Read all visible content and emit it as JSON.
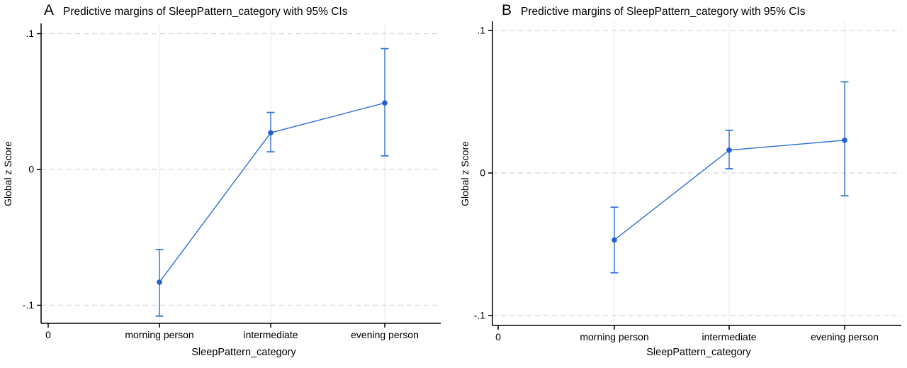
{
  "figure": {
    "background": "#ffffff"
  },
  "chart_data": [
    {
      "type": "line",
      "panel_label": "A",
      "title": "Predictive margins of SleepPattern_category with 95% CIs",
      "xlabel": "SleepPattern_category",
      "ylabel": "Global z Score",
      "legend": "none",
      "grid": {
        "horizontal_dashed": true,
        "vertical_faint": true
      },
      "x_axis": {
        "origin_label": "0",
        "categories": [
          "morning person",
          "intermediate",
          "evening person"
        ]
      },
      "y_axis": {
        "ylim": [
          -0.113,
          0.108
        ],
        "ticks": [
          {
            "label": ".1",
            "value": 0.1
          },
          {
            "label": "0",
            "value": 0.0
          },
          {
            "label": "-.1",
            "value": -0.1
          }
        ]
      },
      "series": [
        {
          "name": "Predictive margins with 95% CIs",
          "values": [
            -0.083,
            0.027,
            0.049
          ],
          "ci_low": [
            -0.108,
            0.013,
            0.01
          ],
          "ci_high": [
            -0.059,
            0.042,
            0.089
          ]
        }
      ],
      "colors": {
        "line": "#2f6fd6",
        "marker": "#2360d2",
        "grid_horizontal": "#d5d5d5",
        "grid_vertical": "#eaedf2",
        "axis": "#000000"
      }
    },
    {
      "type": "line",
      "panel_label": "B",
      "title": "Predictive margins of SleepPattern_category with 95% CIs",
      "xlabel": "SleepPattern_category",
      "ylabel": "Global z Score",
      "legend": "none",
      "grid": {
        "horizontal_dashed": true,
        "vertical_faint": true
      },
      "x_axis": {
        "origin_label": "0",
        "categories": [
          "morning person",
          "intermediate",
          "evening person"
        ]
      },
      "y_axis": {
        "ylim": [
          -0.107,
          0.107
        ],
        "ticks": [
          {
            "label": ".1",
            "value": 0.1
          },
          {
            "label": "0",
            "value": 0.0
          },
          {
            "label": "-.1",
            "value": -0.1
          }
        ]
      },
      "series": [
        {
          "name": "Predictive margins with 95% CIs",
          "values": [
            -0.047,
            0.016,
            0.023
          ],
          "ci_low": [
            -0.07,
            0.003,
            -0.016
          ],
          "ci_high": [
            -0.024,
            0.03,
            0.064
          ]
        }
      ],
      "colors": {
        "line": "#2f6fd6",
        "marker": "#2360d2",
        "grid_horizontal": "#d5d5d5",
        "grid_vertical": "#eaedf2",
        "axis": "#000000"
      }
    }
  ]
}
